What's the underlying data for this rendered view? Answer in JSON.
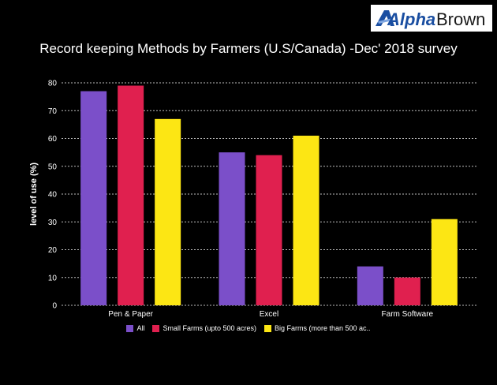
{
  "logo": {
    "name": "AlphaBrown",
    "part1": "Alpha",
    "part2": "Brown",
    "color1": "#1a4ea1",
    "color2": "#1a1a1a"
  },
  "chart_data": {
    "type": "bar",
    "title": "Record keeping Methods by Farmers (U.S/Canada) -Dec' 2018 survey",
    "xlabel": "",
    "ylabel": "level of use (%)",
    "ylim": [
      0,
      80
    ],
    "yticks": [
      0,
      10,
      20,
      30,
      40,
      50,
      60,
      70,
      80
    ],
    "grid": true,
    "legend_position": "bottom",
    "categories": [
      "Pen & Paper",
      "Excel",
      "Farm Software"
    ],
    "series": [
      {
        "name": "All",
        "color": "#7b4fc9",
        "values": [
          77,
          55,
          14
        ]
      },
      {
        "name": "Small Farms (upto 500 acres)",
        "color": "#e0204f",
        "values": [
          79,
          54,
          10
        ]
      },
      {
        "name": "Big Farms (more than 500 ac..",
        "color": "#fce614",
        "values": [
          67,
          61,
          31
        ]
      }
    ]
  }
}
